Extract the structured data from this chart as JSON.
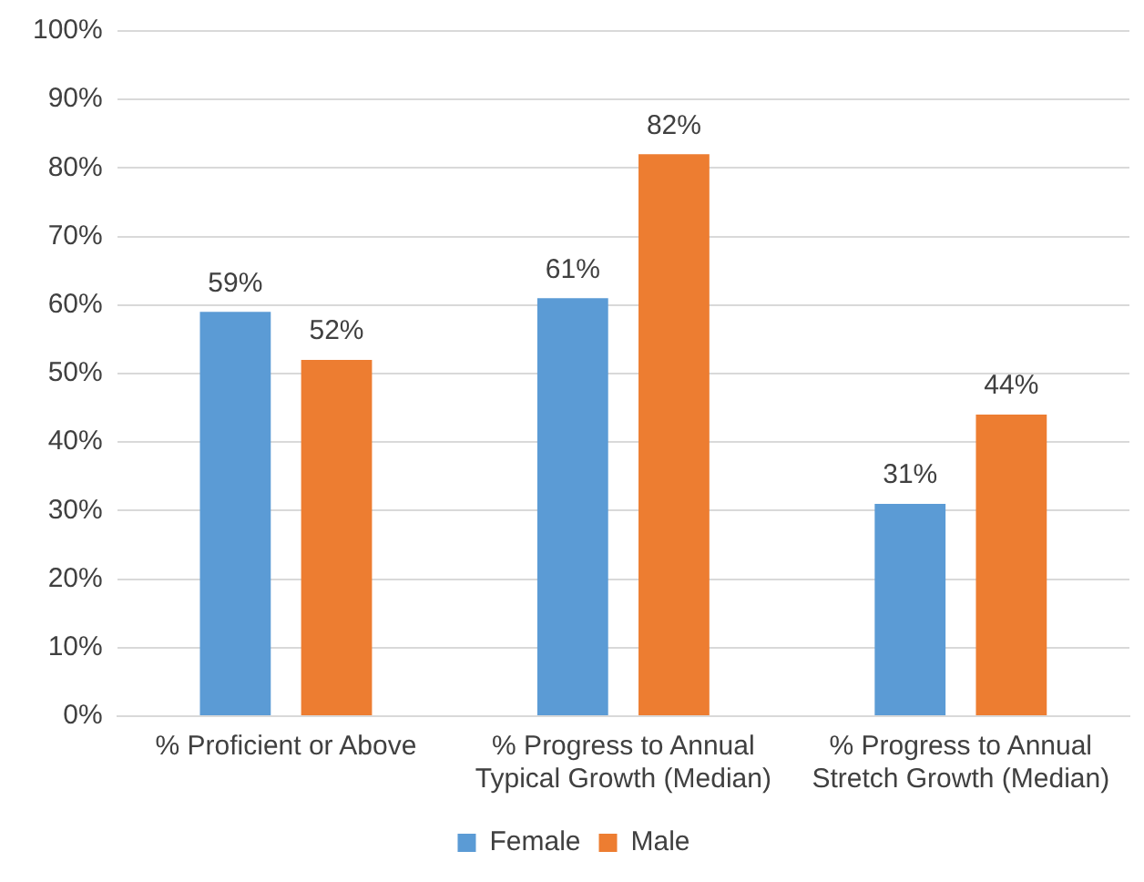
{
  "chart_data": {
    "type": "bar",
    "categories": [
      "% Proficient or Above",
      "% Progress to Annual Typical Growth (Median)",
      "% Progress to Annual Stretch Growth (Median)"
    ],
    "series": [
      {
        "name": "Female",
        "color": "#5b9bd5",
        "values": [
          59,
          61,
          31
        ],
        "value_labels": [
          "59%",
          "61%",
          "31%"
        ]
      },
      {
        "name": "Male",
        "color": "#ed7d31",
        "values": [
          52,
          82,
          44
        ],
        "value_labels": [
          "52%",
          "82%",
          "44%"
        ]
      }
    ],
    "ylim": [
      0,
      100
    ],
    "yticks": [
      {
        "value": 0,
        "label": "0%"
      },
      {
        "value": 10,
        "label": "10%"
      },
      {
        "value": 20,
        "label": "20%"
      },
      {
        "value": 30,
        "label": "30%"
      },
      {
        "value": 40,
        "label": "40%"
      },
      {
        "value": 50,
        "label": "50%"
      },
      {
        "value": 60,
        "label": "60%"
      },
      {
        "value": 70,
        "label": "70%"
      },
      {
        "value": 80,
        "label": "80%"
      },
      {
        "value": 90,
        "label": "90%"
      },
      {
        "value": 100,
        "label": "100%"
      }
    ],
    "grid": "y",
    "legend": "bottom"
  }
}
